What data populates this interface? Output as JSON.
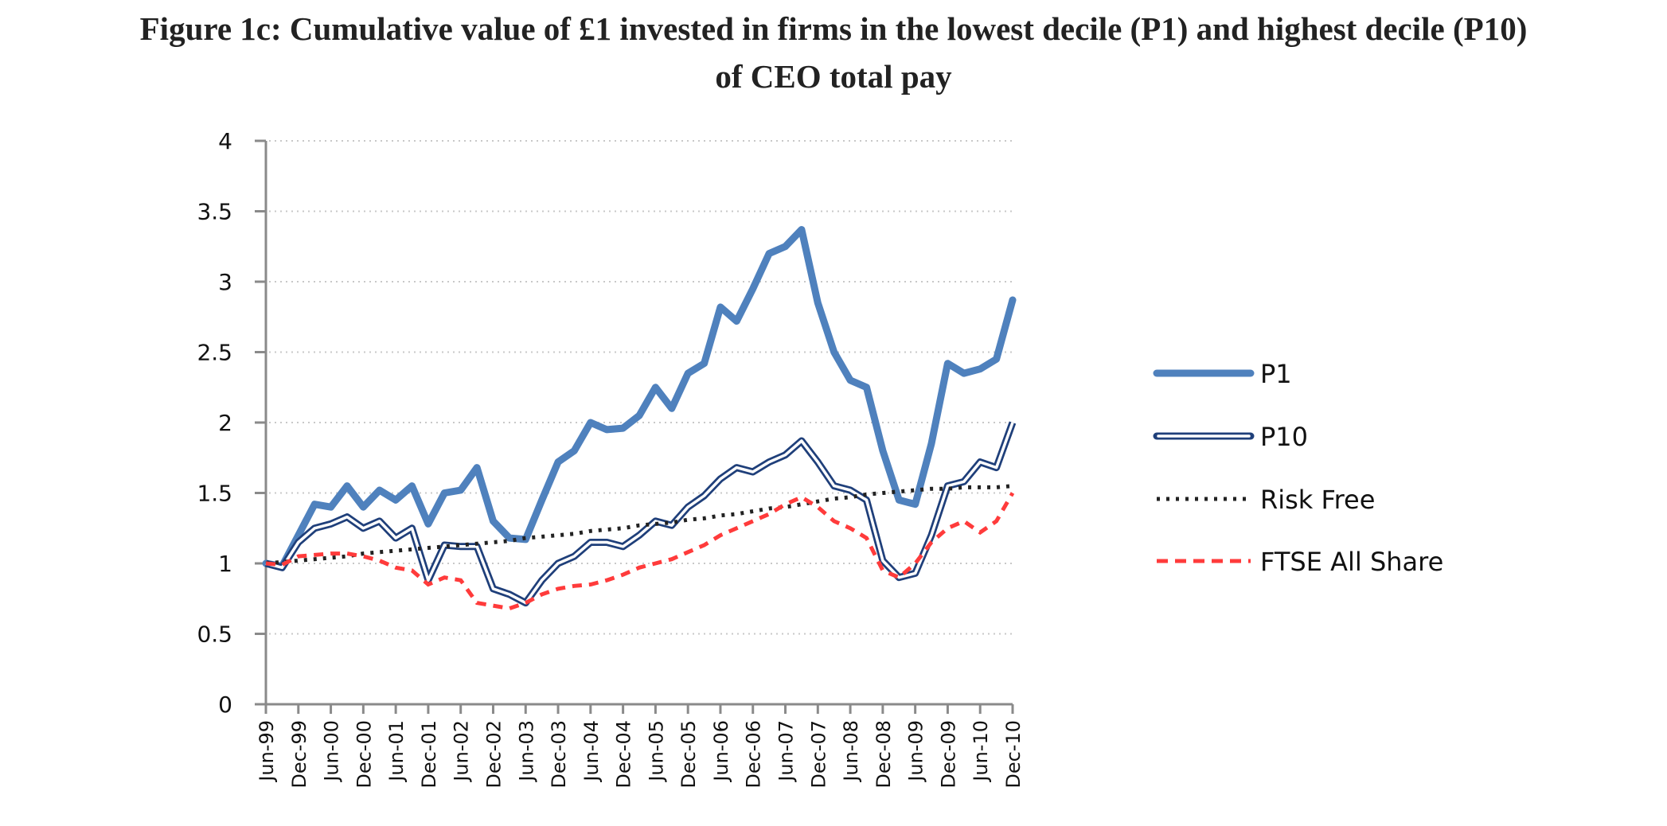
{
  "title_line1": "Figure 1c: Cumulative value of £1 invested in firms in the lowest decile (P1) and highest decile (P10)",
  "title_line2": "of CEO total pay",
  "chart_data": {
    "type": "line",
    "title": "Figure 1c: Cumulative value of £1 invested in firms in the lowest decile (P1) and highest decile (P10) of CEO total pay",
    "xlabel": "",
    "ylabel": "",
    "ylim": [
      0,
      4
    ],
    "yticks": [
      "0",
      "0.5",
      "1",
      "1.5",
      "2",
      "2.5",
      "3",
      "3.5",
      "4"
    ],
    "ytick_values": [
      0,
      0.5,
      1,
      1.5,
      2,
      2.5,
      3,
      3.5,
      4
    ],
    "grid": "horizontal dotted",
    "legend_position": "right",
    "categories": [
      "Jun-99",
      "Dec-99",
      "Jun-00",
      "Dec-00",
      "Jun-01",
      "Dec-01",
      "Jun-02",
      "Dec-02",
      "Jun-03",
      "Dec-03",
      "Jun-04",
      "Dec-04",
      "Jun-05",
      "Dec-05",
      "Jun-06",
      "Dec-06",
      "Jun-07",
      "Dec-07",
      "Jun-08",
      "Dec-08",
      "Jun-09",
      "Dec-09",
      "Jun-10",
      "Dec-10"
    ],
    "x_quarterly": [
      "Jun-99",
      "Sep-99",
      "Dec-99",
      "Mar-00",
      "Jun-00",
      "Sep-00",
      "Dec-00",
      "Mar-01",
      "Jun-01",
      "Sep-01",
      "Dec-01",
      "Mar-02",
      "Jun-02",
      "Sep-02",
      "Dec-02",
      "Mar-03",
      "Jun-03",
      "Sep-03",
      "Dec-03",
      "Mar-04",
      "Jun-04",
      "Sep-04",
      "Dec-04",
      "Mar-05",
      "Jun-05",
      "Sep-05",
      "Dec-05",
      "Mar-06",
      "Jun-06",
      "Sep-06",
      "Dec-06",
      "Mar-07",
      "Jun-07",
      "Sep-07",
      "Dec-07",
      "Mar-08",
      "Jun-08",
      "Sep-08",
      "Dec-08",
      "Mar-09",
      "Jun-09",
      "Sep-09",
      "Dec-09",
      "Mar-10",
      "Jun-10",
      "Sep-10",
      "Dec-10"
    ],
    "series": [
      {
        "name": "P1",
        "style": "thick-solid",
        "color": "#4F81BD",
        "values": [
          1.0,
          0.98,
          1.2,
          1.42,
          1.4,
          1.55,
          1.4,
          1.52,
          1.45,
          1.55,
          1.28,
          1.5,
          1.52,
          1.68,
          1.3,
          1.18,
          1.17,
          1.45,
          1.72,
          1.8,
          2.0,
          1.95,
          1.96,
          2.05,
          2.25,
          2.1,
          2.35,
          2.42,
          2.82,
          2.72,
          2.95,
          3.2,
          3.25,
          3.37,
          2.85,
          2.5,
          2.3,
          2.25,
          1.8,
          1.45,
          1.42,
          1.85,
          2.42,
          2.35,
          2.38,
          2.45,
          2.87
        ]
      },
      {
        "name": "P10",
        "style": "double-line",
        "color": "#1F3F7A",
        "values": [
          1.0,
          0.97,
          1.15,
          1.25,
          1.28,
          1.33,
          1.25,
          1.3,
          1.18,
          1.25,
          0.88,
          1.13,
          1.12,
          1.12,
          0.82,
          0.78,
          0.72,
          0.88,
          1.0,
          1.05,
          1.15,
          1.15,
          1.12,
          1.2,
          1.3,
          1.27,
          1.4,
          1.48,
          1.6,
          1.68,
          1.65,
          1.72,
          1.77,
          1.87,
          1.72,
          1.55,
          1.52,
          1.45,
          1.02,
          0.9,
          0.93,
          1.2,
          1.55,
          1.58,
          1.72,
          1.68,
          2.0
        ]
      },
      {
        "name": "Risk Free",
        "style": "dotted",
        "color": "#222222",
        "values": [
          1.0,
          1.01,
          1.02,
          1.03,
          1.04,
          1.05,
          1.07,
          1.08,
          1.09,
          1.1,
          1.11,
          1.12,
          1.13,
          1.14,
          1.15,
          1.16,
          1.18,
          1.19,
          1.2,
          1.21,
          1.23,
          1.24,
          1.25,
          1.27,
          1.28,
          1.29,
          1.31,
          1.32,
          1.34,
          1.35,
          1.37,
          1.39,
          1.4,
          1.42,
          1.44,
          1.46,
          1.47,
          1.49,
          1.5,
          1.51,
          1.52,
          1.53,
          1.53,
          1.54,
          1.54,
          1.54,
          1.55
        ]
      },
      {
        "name": "FTSE All Share",
        "style": "dashed",
        "color": "#FF3B3B",
        "values": [
          1.0,
          0.99,
          1.05,
          1.06,
          1.07,
          1.07,
          1.05,
          1.02,
          0.97,
          0.95,
          0.85,
          0.9,
          0.88,
          0.72,
          0.7,
          0.68,
          0.72,
          0.78,
          0.82,
          0.84,
          0.85,
          0.88,
          0.92,
          0.97,
          1.0,
          1.03,
          1.08,
          1.13,
          1.2,
          1.25,
          1.3,
          1.35,
          1.42,
          1.47,
          1.4,
          1.3,
          1.25,
          1.18,
          0.95,
          0.9,
          1.0,
          1.15,
          1.25,
          1.3,
          1.22,
          1.3,
          1.5
        ]
      }
    ]
  },
  "legend": {
    "items": [
      {
        "label": "P1"
      },
      {
        "label": "P10"
      },
      {
        "label": "Risk Free"
      },
      {
        "label": "FTSE All Share"
      }
    ]
  }
}
